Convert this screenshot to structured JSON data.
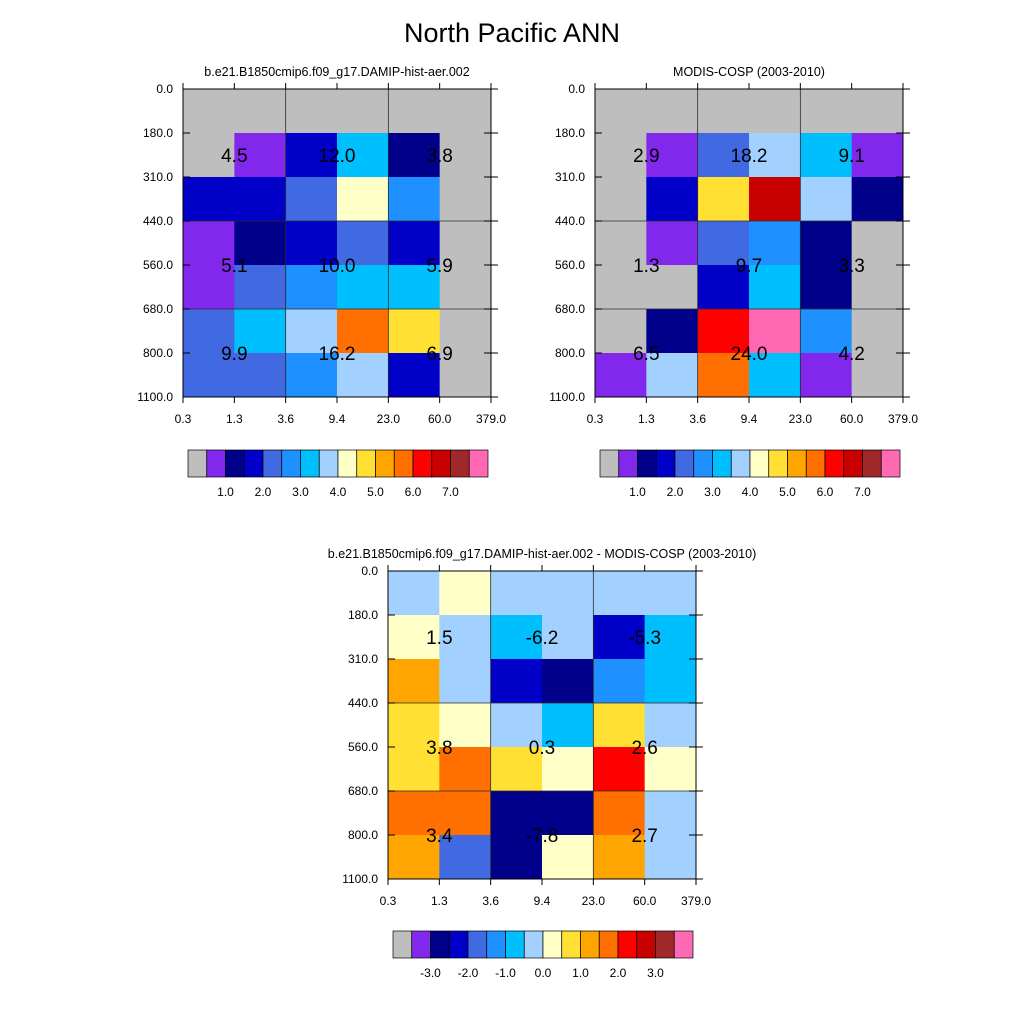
{
  "title": "North Pacific ANN",
  "colors": {
    "missing": "#bebebe",
    "grid": "#2b2b2b",
    "text": "#000000"
  },
  "chart_data": [
    {
      "type": "heatmap",
      "id": "model",
      "title": "b.e21.B1850cmip6.f09_g17.DAMIP-hist-aer.002",
      "xlabel": "",
      "ylabel": "",
      "x_tick_labels": [
        "0.3",
        "1.3",
        "3.6",
        "9.4",
        "23.0",
        "60.0",
        "379.0"
      ],
      "y_tick_labels": [
        "0.0",
        "180.0",
        "310.0",
        "440.0",
        "560.0",
        "680.0",
        "800.0",
        "1100.0"
      ],
      "cells": [
        [
          "#bebebe",
          "#bebebe",
          "#bebebe",
          "#bebebe",
          "#bebebe",
          "#bebebe"
        ],
        [
          "#bebebe",
          "#8228ec",
          "#0000c8",
          "#00bfff",
          "#00008b",
          "#bebebe"
        ],
        [
          "#0000c8",
          "#0000c8",
          "#4169e1",
          "#ffffc8",
          "#1e90ff",
          "#bebebe"
        ],
        [
          "#8228ec",
          "#00008b",
          "#0000c8",
          "#4169e1",
          "#0000c8",
          "#bebebe"
        ],
        [
          "#8228ec",
          "#4169e1",
          "#1e90ff",
          "#00bfff",
          "#00bfff",
          "#bebebe"
        ],
        [
          "#4169e1",
          "#00bfff",
          "#a3d1ff",
          "#ff7000",
          "#ffe033",
          "#bebebe"
        ],
        [
          "#4169e1",
          "#4169e1",
          "#1e90ff",
          "#a3d1ff",
          "#0000c8",
          "#bebebe"
        ]
      ],
      "annotations": [
        {
          "row": 1.5,
          "col": 1,
          "text": "4.5"
        },
        {
          "row": 1.5,
          "col": 3,
          "text": "12.0"
        },
        {
          "row": 1.5,
          "col": 5,
          "text": "3.8"
        },
        {
          "row": 4,
          "col": 1,
          "text": "5.1"
        },
        {
          "row": 4,
          "col": 3,
          "text": "10.0"
        },
        {
          "row": 4,
          "col": 5,
          "text": "5.9"
        },
        {
          "row": 6,
          "col": 1,
          "text": "9.9"
        },
        {
          "row": 6,
          "col": 3,
          "text": "16.2"
        },
        {
          "row": 6,
          "col": 5,
          "text": "6.9"
        }
      ],
      "colorbar": {
        "colors": [
          "#bebebe",
          "#8228ec",
          "#00008b",
          "#0000c8",
          "#4169e1",
          "#1e90ff",
          "#00bfff",
          "#a3d1ff",
          "#ffffc8",
          "#ffe033",
          "#ffa500",
          "#ff7000",
          "#ff0000",
          "#c80000",
          "#a02828",
          "#ff69b4"
        ],
        "labels": [
          "1.0",
          "2.0",
          "3.0",
          "4.0",
          "5.0",
          "6.0",
          "7.0"
        ],
        "label_after_box": [
          2,
          4,
          6,
          8,
          10,
          12,
          14
        ]
      }
    },
    {
      "type": "heatmap",
      "id": "obs",
      "title": "MODIS-COSP (2003-2010)",
      "xlabel": "",
      "ylabel": "",
      "x_tick_labels": [
        "0.3",
        "1.3",
        "3.6",
        "9.4",
        "23.0",
        "60.0",
        "379.0"
      ],
      "y_tick_labels": [
        "0.0",
        "180.0",
        "310.0",
        "440.0",
        "560.0",
        "680.0",
        "800.0",
        "1100.0"
      ],
      "cells": [
        [
          "#bebebe",
          "#bebebe",
          "#bebebe",
          "#bebebe",
          "#bebebe",
          "#bebebe"
        ],
        [
          "#bebebe",
          "#8228ec",
          "#4169e1",
          "#a3d1ff",
          "#00bfff",
          "#8228ec"
        ],
        [
          "#bebebe",
          "#0000c8",
          "#ffe033",
          "#c80000",
          "#a3d1ff",
          "#00008b"
        ],
        [
          "#bebebe",
          "#8228ec",
          "#4169e1",
          "#1e90ff",
          "#00008b",
          "#bebebe"
        ],
        [
          "#bebebe",
          "#bebebe",
          "#0000c8",
          "#00bfff",
          "#00008b",
          "#bebebe"
        ],
        [
          "#bebebe",
          "#00008b",
          "#ff0000",
          "#ff69b4",
          "#1e90ff",
          "#bebebe"
        ],
        [
          "#8228ec",
          "#a3d1ff",
          "#ff7000",
          "#00bfff",
          "#8228ec",
          "#bebebe"
        ]
      ],
      "annotations": [
        {
          "row": 1.5,
          "col": 1,
          "text": "2.9"
        },
        {
          "row": 1.5,
          "col": 3,
          "text": "18.2"
        },
        {
          "row": 1.5,
          "col": 5,
          "text": "9.1"
        },
        {
          "row": 4,
          "col": 1,
          "text": "1.3"
        },
        {
          "row": 4,
          "col": 3,
          "text": "9.7"
        },
        {
          "row": 4,
          "col": 5,
          "text": "3.3"
        },
        {
          "row": 6,
          "col": 1,
          "text": "6.5"
        },
        {
          "row": 6,
          "col": 3,
          "text": "24.0"
        },
        {
          "row": 6,
          "col": 5,
          "text": "4.2"
        }
      ],
      "colorbar": {
        "colors": [
          "#bebebe",
          "#8228ec",
          "#00008b",
          "#0000c8",
          "#4169e1",
          "#1e90ff",
          "#00bfff",
          "#a3d1ff",
          "#ffffc8",
          "#ffe033",
          "#ffa500",
          "#ff7000",
          "#ff0000",
          "#c80000",
          "#a02828",
          "#ff69b4"
        ],
        "labels": [
          "1.0",
          "2.0",
          "3.0",
          "4.0",
          "5.0",
          "6.0",
          "7.0"
        ],
        "label_after_box": [
          2,
          4,
          6,
          8,
          10,
          12,
          14
        ]
      }
    },
    {
      "type": "heatmap",
      "id": "diff",
      "title": "b.e21.B1850cmip6.f09_g17.DAMIP-hist-aer.002 - MODIS-COSP (2003-2010)",
      "xlabel": "",
      "ylabel": "",
      "x_tick_labels": [
        "0.3",
        "1.3",
        "3.6",
        "9.4",
        "23.0",
        "60.0",
        "379.0"
      ],
      "y_tick_labels": [
        "0.0",
        "180.0",
        "310.0",
        "440.0",
        "560.0",
        "680.0",
        "800.0",
        "1100.0"
      ],
      "cells": [
        [
          "#a3d1ff",
          "#ffffc8",
          "#a3d1ff",
          "#a3d1ff",
          "#a3d1ff",
          "#a3d1ff"
        ],
        [
          "#ffffc8",
          "#a3d1ff",
          "#00bfff",
          "#a3d1ff",
          "#0000c8",
          "#00bfff"
        ],
        [
          "#ffa500",
          "#a3d1ff",
          "#0000c8",
          "#00008b",
          "#1e90ff",
          "#00bfff"
        ],
        [
          "#ffe033",
          "#ffffc8",
          "#a3d1ff",
          "#00bfff",
          "#ffe033",
          "#a3d1ff"
        ],
        [
          "#ffe033",
          "#ff7000",
          "#ffe033",
          "#ffffc8",
          "#ff0000",
          "#ffffc8"
        ],
        [
          "#ff7000",
          "#ff7000",
          "#00008b",
          "#00008b",
          "#ff7000",
          "#a3d1ff"
        ],
        [
          "#ffa500",
          "#4169e1",
          "#00008b",
          "#ffffc8",
          "#ffa500",
          "#a3d1ff"
        ]
      ],
      "annotations": [
        {
          "row": 1.5,
          "col": 1,
          "text": "1.5"
        },
        {
          "row": 1.5,
          "col": 3,
          "text": "-6.2"
        },
        {
          "row": 1.5,
          "col": 5,
          "text": "-5.3"
        },
        {
          "row": 4,
          "col": 1,
          "text": "3.8"
        },
        {
          "row": 4,
          "col": 3,
          "text": "0.3"
        },
        {
          "row": 4,
          "col": 5,
          "text": "2.6"
        },
        {
          "row": 6,
          "col": 1,
          "text": "3.4"
        },
        {
          "row": 6,
          "col": 3,
          "text": "-7.8"
        },
        {
          "row": 6,
          "col": 5,
          "text": "2.7"
        }
      ],
      "colorbar": {
        "colors": [
          "#bebebe",
          "#8228ec",
          "#00008b",
          "#0000c8",
          "#4169e1",
          "#1e90ff",
          "#00bfff",
          "#a3d1ff",
          "#ffffc8",
          "#ffe033",
          "#ffa500",
          "#ff7000",
          "#ff0000",
          "#c80000",
          "#a02828",
          "#ff69b4"
        ],
        "labels": [
          "-3.0",
          "-2.0",
          "-1.0",
          "0.0",
          "1.0",
          "2.0",
          "3.0"
        ],
        "label_after_box": [
          2,
          4,
          6,
          8,
          10,
          12,
          14
        ]
      }
    }
  ]
}
